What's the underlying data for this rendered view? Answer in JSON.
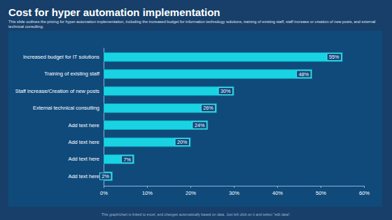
{
  "chart_data": {
    "type": "bar",
    "orientation": "horizontal",
    "title": "Cost for hyper automation implementation",
    "subtitle": "This slide outlines the pricing for hyper-automation implementation, including the increased budget for information technology solutions, training of existing staff, staff increase or creation of new posts, and external technical consulting.",
    "annotations": [
      "This graph/chart is linked to excel, and changes automatically based on data. Just left click on it and select \"edit data\"."
    ],
    "categories": [
      "Increased budget for IT solutions",
      "Training of existing staff",
      "Staff increase/Creation of new posts",
      "External technical consulting",
      "Add text here",
      "Add text here",
      "Add text here",
      "Add text here"
    ],
    "values": [
      55,
      48,
      30,
      26,
      24,
      20,
      7,
      2
    ],
    "value_labels": [
      "55%",
      "48%",
      "30%",
      "26%",
      "24%",
      "20%",
      "7%",
      "2%"
    ],
    "data_labels": true,
    "color": "#19d3e3",
    "xlim": [
      0,
      60
    ],
    "xticks": [
      {
        "value": 0,
        "label": "0%"
      },
      {
        "value": 10,
        "label": "10%"
      },
      {
        "value": 20,
        "label": "20%"
      },
      {
        "value": 30,
        "label": "30%"
      },
      {
        "value": 40,
        "label": "40%"
      },
      {
        "value": 50,
        "label": "50%"
      },
      {
        "value": 60,
        "label": "60%"
      }
    ],
    "grid": false
  }
}
